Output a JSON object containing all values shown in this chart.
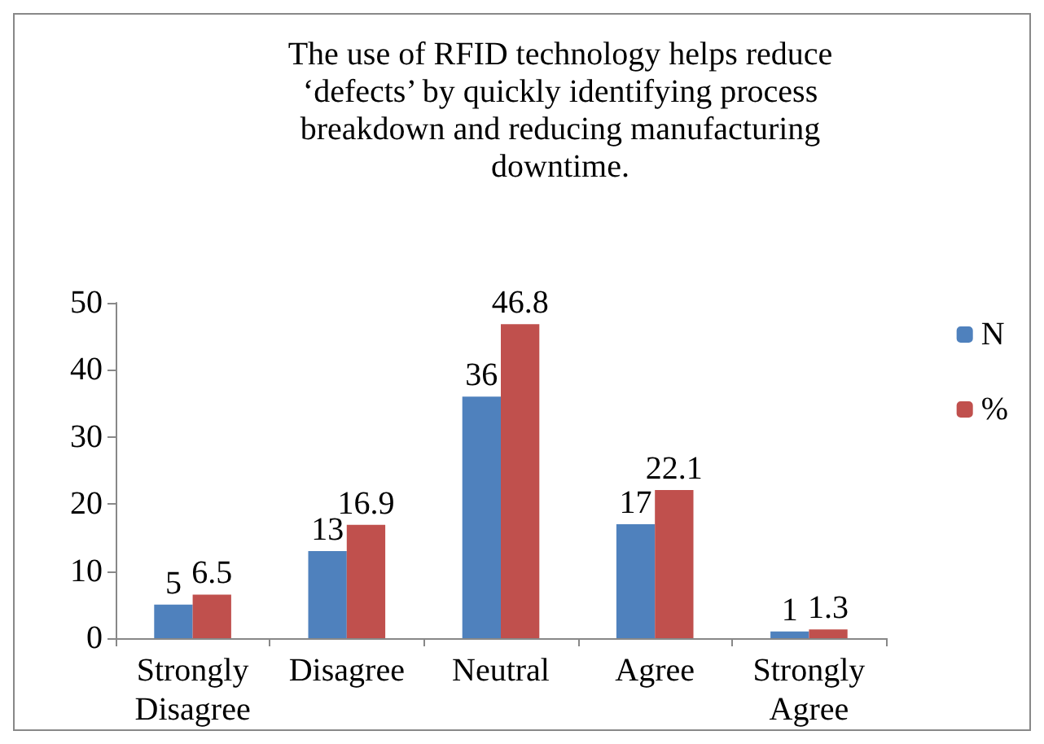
{
  "chart_data": {
    "type": "bar",
    "title": "The use of RFID technology helps reduce\n‘defects’ by quickly identifying process\nbreakdown and reducing manufacturing\ndowntime.",
    "categories": [
      "Strongly\nDisagree",
      "Disagree",
      "Neutral",
      "Agree",
      "Strongly\nAgree"
    ],
    "series": [
      {
        "name": "N",
        "color": "#4f81bd",
        "values": [
          5,
          13,
          36,
          17,
          1
        ]
      },
      {
        "name": "%",
        "color": "#c0504d",
        "values": [
          6.5,
          16.9,
          46.8,
          22.1,
          1.3
        ]
      }
    ],
    "ylim": [
      0,
      50
    ],
    "yticks": [
      0,
      10,
      20,
      30,
      40,
      50
    ],
    "grid": false,
    "legend": "right",
    "data_labels": true
  }
}
